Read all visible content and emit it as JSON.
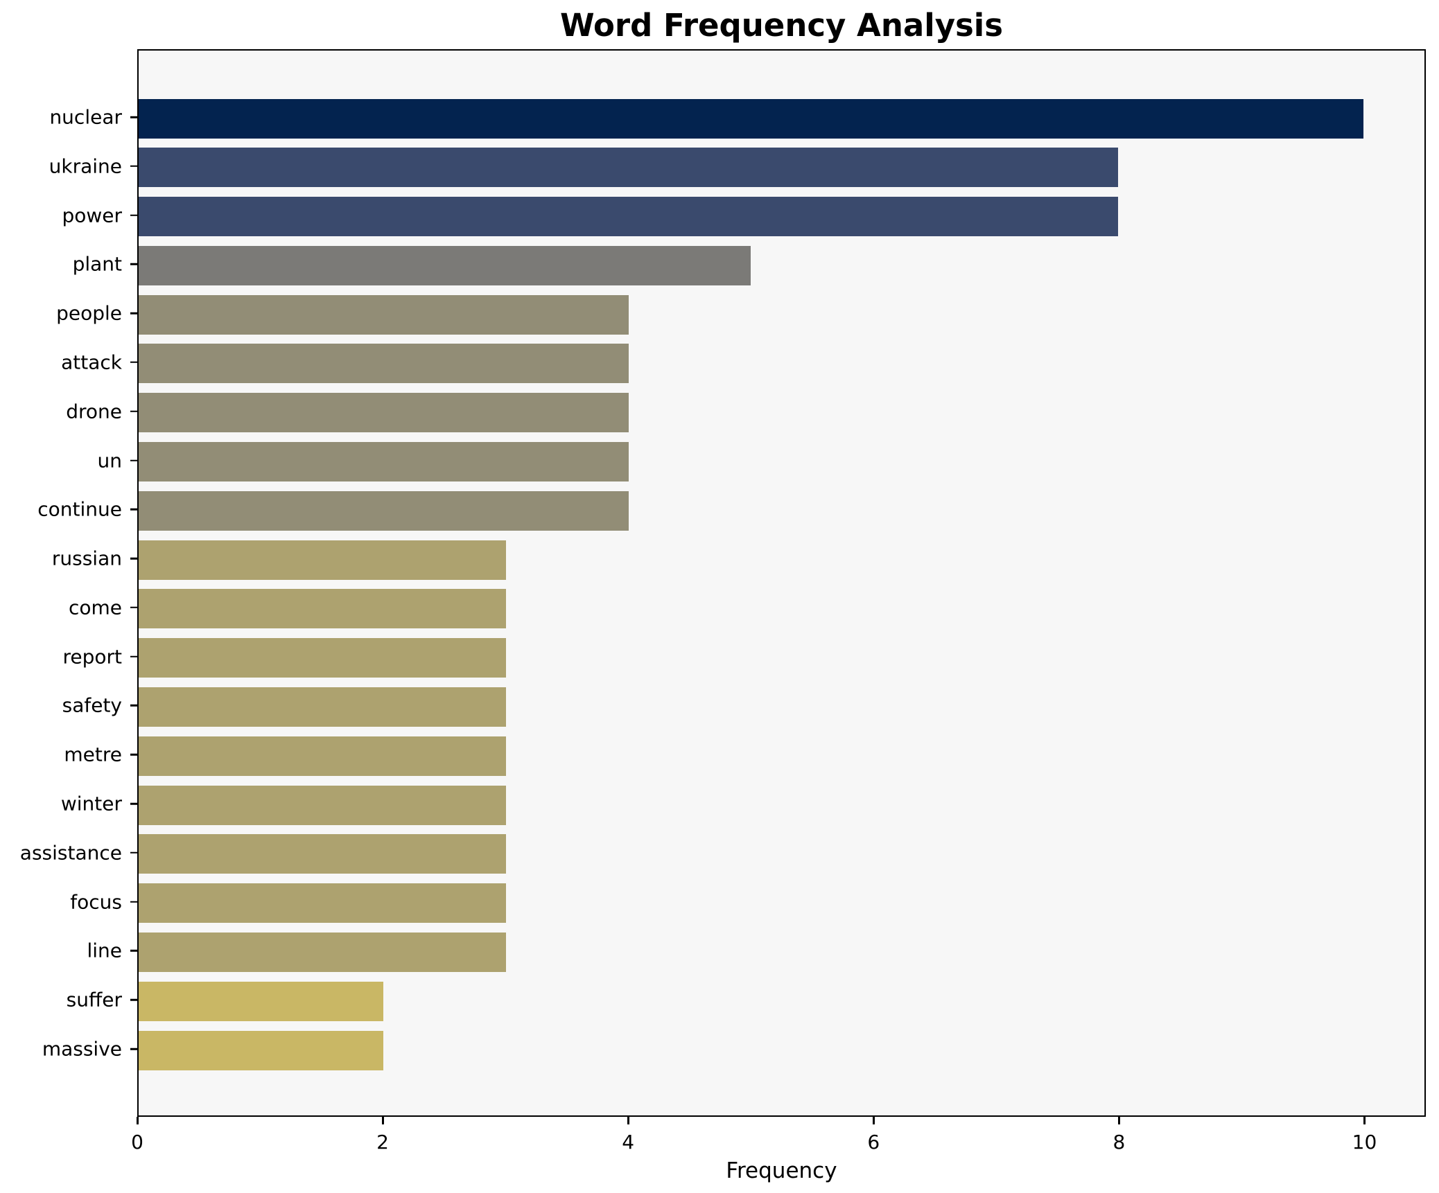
{
  "chart_data": {
    "type": "bar",
    "orientation": "horizontal",
    "title": "Word Frequency Analysis",
    "xlabel": "Frequency",
    "ylabel": "",
    "categories": [
      "nuclear",
      "ukraine",
      "power",
      "plant",
      "people",
      "attack",
      "drone",
      "un",
      "continue",
      "russian",
      "come",
      "report",
      "safety",
      "metre",
      "winter",
      "assistance",
      "focus",
      "line",
      "suffer",
      "massive"
    ],
    "values": [
      10,
      8,
      8,
      5,
      4,
      4,
      4,
      4,
      4,
      3,
      3,
      3,
      3,
      3,
      3,
      3,
      3,
      3,
      2,
      2
    ],
    "bar_colors": [
      "#03234f",
      "#3a4a6d",
      "#3a4a6d",
      "#7b7a77",
      "#928d76",
      "#928d76",
      "#928d76",
      "#928d76",
      "#928d76",
      "#ada26f",
      "#ada26f",
      "#ada26f",
      "#ada26f",
      "#ada26f",
      "#ada26f",
      "#ada26f",
      "#ada26f",
      "#ada26f",
      "#c9b765",
      "#c9b765"
    ],
    "xticks": [
      0,
      2,
      4,
      6,
      8,
      10
    ],
    "xlim": [
      0,
      10.5
    ],
    "grid": false,
    "legend": null,
    "plot_background": "#f7f7f7",
    "figure_background": "#ffffff"
  }
}
